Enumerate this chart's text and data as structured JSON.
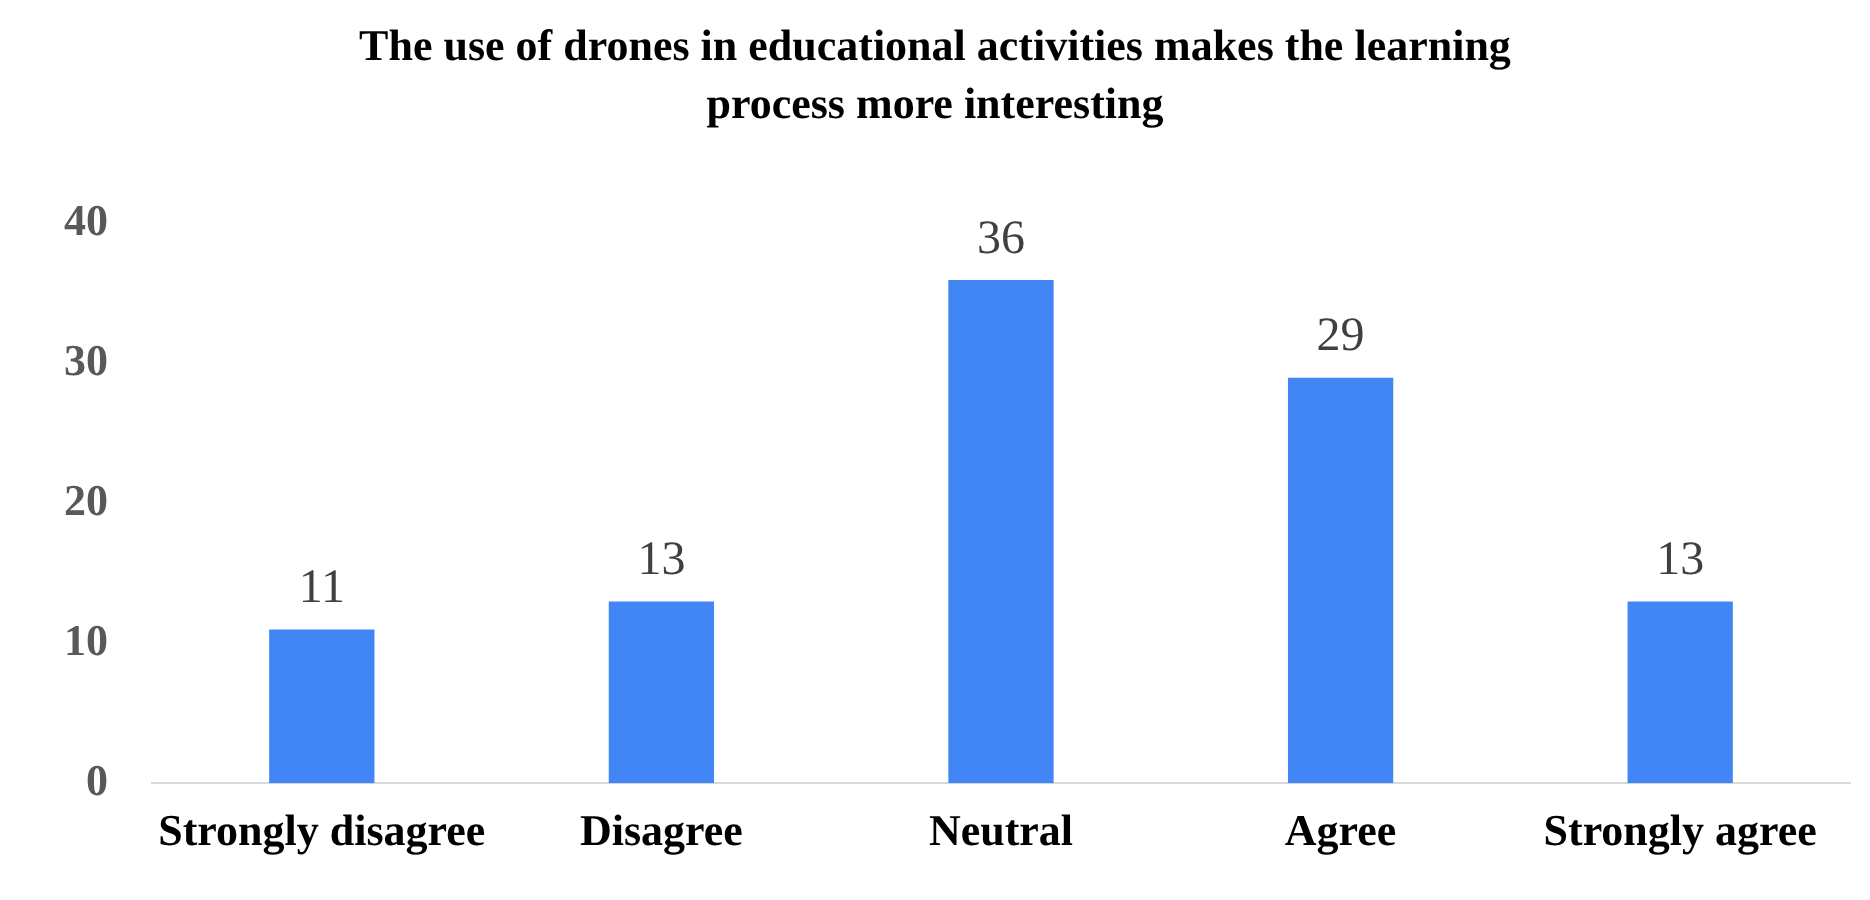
{
  "chart_data": {
    "type": "bar",
    "title": "The use of drones in educational activities makes the learning process more interesting",
    "categories": [
      "Strongly disagree",
      "Disagree",
      "Neutral",
      "Agree",
      "Strongly agree"
    ],
    "values": [
      11,
      13,
      36,
      29,
      13
    ],
    "color": "#4285f4",
    "ylim": [
      0,
      40
    ],
    "yticks": [
      0,
      10,
      20,
      30,
      40
    ],
    "grid": false,
    "legend": false,
    "data_labels": true
  }
}
